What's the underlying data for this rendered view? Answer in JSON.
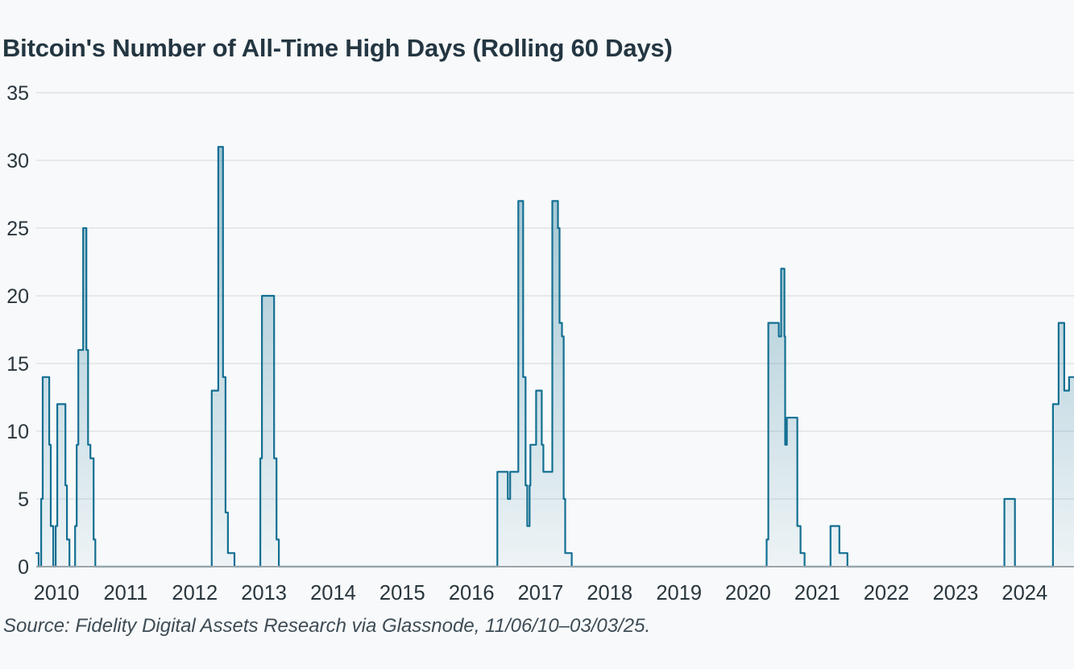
{
  "page": {
    "background": "#f7f9fa"
  },
  "chart_data": {
    "type": "area",
    "title": "Bitcoin's Number of All-Time High Days (Rolling 60 Days)",
    "source_note": "Source: Fidelity Digital Assets Research via Glassnode, 11/06/10–03/03/25.",
    "xlabel": "",
    "ylabel": "",
    "ylim": [
      0,
      35
    ],
    "yticks": [
      0,
      5,
      10,
      15,
      20,
      25,
      30,
      35
    ],
    "grid": "horizontal",
    "legend": "none",
    "x_ticks": [
      {
        "label": "2010",
        "pos": 0.0195
      },
      {
        "label": "2011",
        "pos": 0.0861
      },
      {
        "label": "2012",
        "pos": 0.1528
      },
      {
        "label": "2013",
        "pos": 0.2194
      },
      {
        "label": "2014",
        "pos": 0.2861
      },
      {
        "label": "2015",
        "pos": 0.3527
      },
      {
        "label": "2016",
        "pos": 0.4194
      },
      {
        "label": "2017",
        "pos": 0.486
      },
      {
        "label": "2018",
        "pos": 0.5526
      },
      {
        "label": "2019",
        "pos": 0.6193
      },
      {
        "label": "2020",
        "pos": 0.6859
      },
      {
        "label": "2021",
        "pos": 0.7526
      },
      {
        "label": "2022",
        "pos": 0.8192
      },
      {
        "label": "2023",
        "pos": 0.8859
      },
      {
        "label": "2024",
        "pos": 0.9525
      }
    ],
    "series": [
      {
        "name": "ath-days-rolling-60d",
        "points": [
          [
            0.0,
            1
          ],
          [
            0.0023,
            1
          ],
          [
            0.0023,
            0
          ],
          [
            0.0047,
            0
          ],
          [
            0.0047,
            5
          ],
          [
            0.0062,
            5
          ],
          [
            0.0062,
            14
          ],
          [
            0.0125,
            14
          ],
          [
            0.0125,
            9
          ],
          [
            0.014,
            9
          ],
          [
            0.014,
            3
          ],
          [
            0.0164,
            3
          ],
          [
            0.0164,
            0
          ],
          [
            0.0187,
            0
          ],
          [
            0.0187,
            3
          ],
          [
            0.0203,
            3
          ],
          [
            0.0203,
            12
          ],
          [
            0.0281,
            12
          ],
          [
            0.0281,
            6
          ],
          [
            0.0296,
            6
          ],
          [
            0.0296,
            2
          ],
          [
            0.032,
            2
          ],
          [
            0.032,
            0
          ],
          [
            0.0374,
            0
          ],
          [
            0.0374,
            3
          ],
          [
            0.039,
            3
          ],
          [
            0.039,
            9
          ],
          [
            0.0405,
            9
          ],
          [
            0.0405,
            16
          ],
          [
            0.0452,
            16
          ],
          [
            0.0452,
            25
          ],
          [
            0.0483,
            25
          ],
          [
            0.0483,
            16
          ],
          [
            0.0499,
            16
          ],
          [
            0.0499,
            9
          ],
          [
            0.0522,
            9
          ],
          [
            0.0522,
            8
          ],
          [
            0.0553,
            8
          ],
          [
            0.0553,
            2
          ],
          [
            0.0569,
            2
          ],
          [
            0.0569,
            0
          ],
          [
            0.0592,
            0
          ],
          [
            0.1691,
            0
          ],
          [
            0.1691,
            13
          ],
          [
            0.1754,
            13
          ],
          [
            0.1754,
            31
          ],
          [
            0.18,
            31
          ],
          [
            0.18,
            14
          ],
          [
            0.1824,
            14
          ],
          [
            0.1824,
            4
          ],
          [
            0.1847,
            4
          ],
          [
            0.1847,
            1
          ],
          [
            0.191,
            1
          ],
          [
            0.191,
            0
          ],
          [
            0.2159,
            0
          ],
          [
            0.2159,
            8
          ],
          [
            0.2175,
            8
          ],
          [
            0.2175,
            20
          ],
          [
            0.2292,
            20
          ],
          [
            0.2292,
            8
          ],
          [
            0.2315,
            8
          ],
          [
            0.2315,
            2
          ],
          [
            0.2338,
            2
          ],
          [
            0.2338,
            0
          ],
          [
            0.4443,
            0
          ],
          [
            0.4443,
            7
          ],
          [
            0.4544,
            7
          ],
          [
            0.4544,
            5
          ],
          [
            0.4567,
            5
          ],
          [
            0.4567,
            7
          ],
          [
            0.4645,
            7
          ],
          [
            0.4645,
            27
          ],
          [
            0.4692,
            27
          ],
          [
            0.4692,
            14
          ],
          [
            0.4715,
            14
          ],
          [
            0.4715,
            6
          ],
          [
            0.4731,
            6
          ],
          [
            0.4731,
            3
          ],
          [
            0.4754,
            3
          ],
          [
            0.4754,
            6
          ],
          [
            0.4762,
            6
          ],
          [
            0.4762,
            9
          ],
          [
            0.4817,
            9
          ],
          [
            0.4817,
            13
          ],
          [
            0.4871,
            13
          ],
          [
            0.4871,
            9
          ],
          [
            0.4887,
            9
          ],
          [
            0.4887,
            7
          ],
          [
            0.4973,
            7
          ],
          [
            0.4973,
            27
          ],
          [
            0.5027,
            27
          ],
          [
            0.5027,
            25
          ],
          [
            0.5043,
            25
          ],
          [
            0.5043,
            18
          ],
          [
            0.5066,
            18
          ],
          [
            0.5066,
            17
          ],
          [
            0.5082,
            17
          ],
          [
            0.5082,
            5
          ],
          [
            0.5097,
            5
          ],
          [
            0.5097,
            1
          ],
          [
            0.516,
            1
          ],
          [
            0.516,
            0
          ],
          [
            0.7038,
            0
          ],
          [
            0.7038,
            2
          ],
          [
            0.7054,
            2
          ],
          [
            0.7054,
            18
          ],
          [
            0.7155,
            18
          ],
          [
            0.7155,
            17
          ],
          [
            0.7178,
            17
          ],
          [
            0.7178,
            22
          ],
          [
            0.721,
            22
          ],
          [
            0.721,
            17
          ],
          [
            0.7217,
            17
          ],
          [
            0.7217,
            9
          ],
          [
            0.7233,
            9
          ],
          [
            0.7233,
            11
          ],
          [
            0.7334,
            11
          ],
          [
            0.7334,
            3
          ],
          [
            0.7365,
            3
          ],
          [
            0.7365,
            1
          ],
          [
            0.7404,
            1
          ],
          [
            0.7404,
            0
          ],
          [
            0.7654,
            0
          ],
          [
            0.7654,
            3
          ],
          [
            0.7739,
            3
          ],
          [
            0.7739,
            1
          ],
          [
            0.7817,
            1
          ],
          [
            0.7817,
            0
          ],
          [
            0.9329,
            0
          ],
          [
            0.9329,
            5
          ],
          [
            0.9431,
            5
          ],
          [
            0.9431,
            0
          ],
          [
            0.9797,
            0
          ],
          [
            0.9797,
            12
          ],
          [
            0.9852,
            12
          ],
          [
            0.9852,
            18
          ],
          [
            0.9906,
            18
          ],
          [
            0.9906,
            13
          ],
          [
            0.9953,
            13
          ],
          [
            0.9953,
            14
          ],
          [
            1.0,
            14
          ]
        ]
      }
    ],
    "colors": {
      "line": "#136f92",
      "fill": "#136f92",
      "grid": "#dfe4e7",
      "axis_line": "#9aa4aa",
      "tick_text": "#2a363d",
      "title_text": "#233642",
      "source_text": "#3e4c55"
    }
  }
}
